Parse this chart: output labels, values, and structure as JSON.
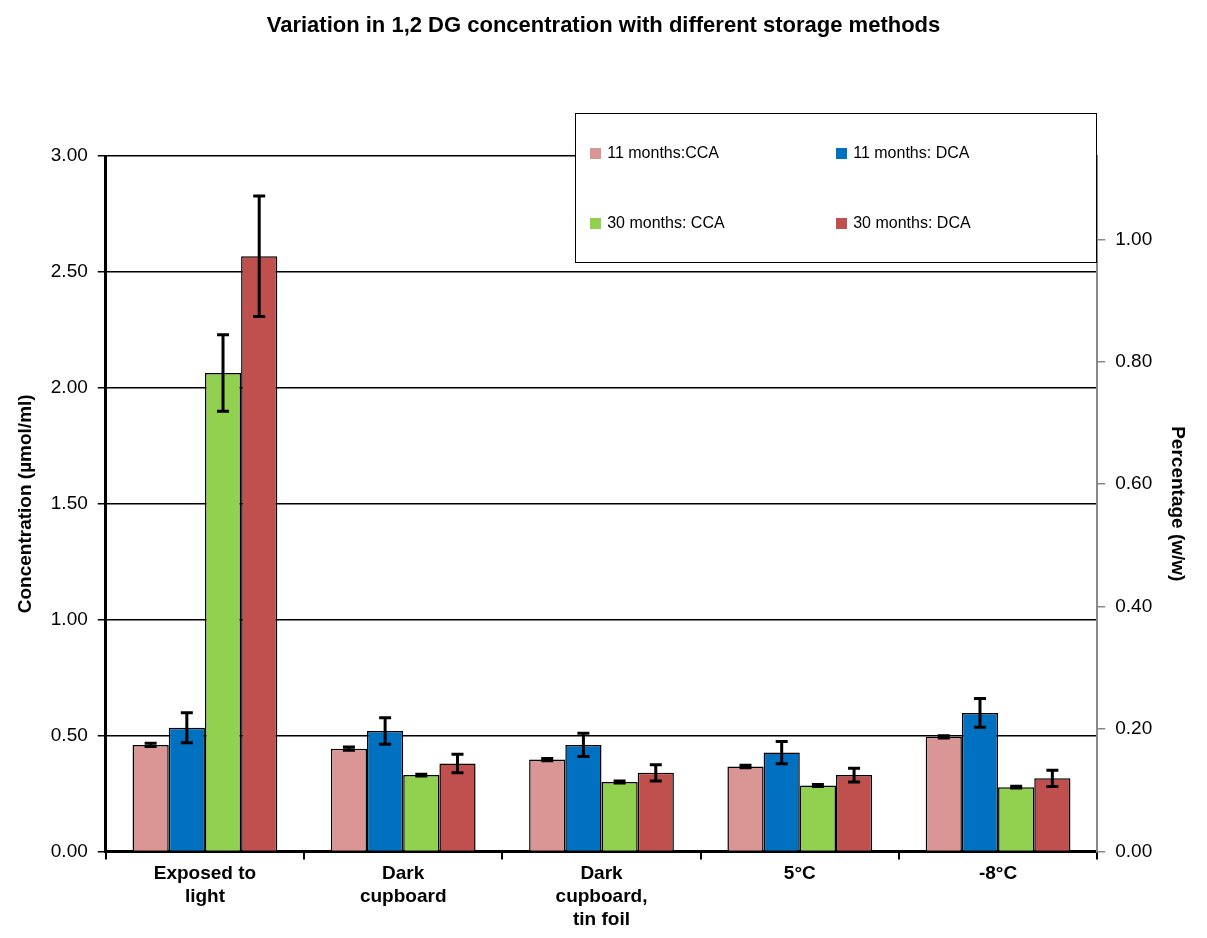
{
  "chart_data": {
    "type": "bar",
    "title": "Variation in 1,2 DG concentration with different storage methods",
    "ylabel": "Concentration (µmol/ml)",
    "y2label": "Percentage (w/w)",
    "categories": [
      "Exposed to light",
      "Dark cupboard",
      "Dark cupboard, tin foil",
      "5°C",
      "-8°C"
    ],
    "series": [
      {
        "name": "11 months:CCA",
        "color": "#d99694",
        "values": [
          0.46,
          0.444,
          0.397,
          0.367,
          0.495
        ],
        "errors": [
          0.007,
          0.007,
          0.005,
          0.005,
          0.005
        ]
      },
      {
        "name": "11 months: DCA",
        "color": "#0070c0",
        "values": [
          0.534,
          0.52,
          0.46,
          0.427,
          0.598
        ],
        "errors": [
          0.065,
          0.057,
          0.05,
          0.048,
          0.062
        ]
      },
      {
        "name": "30 months: CCA",
        "color": "#92d050",
        "values": [
          2.064,
          0.33,
          0.3,
          0.285,
          0.278
        ],
        "errors": [
          0.165,
          0.004,
          0.004,
          0.004,
          0.004
        ]
      },
      {
        "name": "30 months: DCA",
        "color": "#c0504d",
        "values": [
          2.568,
          0.38,
          0.34,
          0.33,
          0.316
        ],
        "errors": [
          0.26,
          0.04,
          0.035,
          0.03,
          0.035
        ]
      }
    ],
    "ylim": [
      0,
      3
    ],
    "yticks": [
      {
        "value": 0,
        "label": "0.00"
      },
      {
        "value": 0.5,
        "label": "0.50"
      },
      {
        "value": 1,
        "label": "1.00"
      },
      {
        "value": 1.5,
        "label": "1.50"
      },
      {
        "value": 2,
        "label": "2.00"
      },
      {
        "value": 2.5,
        "label": "2.50"
      },
      {
        "value": 3,
        "label": "3.00"
      }
    ],
    "y2lim": [
      0,
      1.136
    ],
    "y2ticks": [
      {
        "value": 0,
        "label": "0.00"
      },
      {
        "value": 0.2,
        "label": "0.20"
      },
      {
        "value": 0.4,
        "label": "0.40"
      },
      {
        "value": 0.6,
        "label": "0.60"
      },
      {
        "value": 0.8,
        "label": "0.80"
      },
      {
        "value": 1,
        "label": "1.00"
      }
    ],
    "grid": "y",
    "legend": "top right"
  }
}
